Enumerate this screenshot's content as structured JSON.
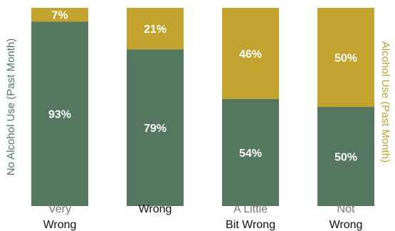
{
  "chart_data": {
    "type": "bar",
    "stacked": true,
    "categories": [
      {
        "line1": "Very",
        "line2": "Wrong"
      },
      {
        "line1": "",
        "line2": "Wrong"
      },
      {
        "line1": "A Little",
        "line2": "Bit Wrong"
      },
      {
        "line1": "Not",
        "line2": "Wrong"
      }
    ],
    "series": [
      {
        "name": "No Alcohol Use (Past Month)",
        "color": "#55775f",
        "values": [
          93,
          79,
          54,
          50
        ],
        "labels": [
          "93%",
          "79%",
          "54%",
          "50%"
        ]
      },
      {
        "name": "Alcohol Use (Past Month)",
        "color": "#c2a32f",
        "values": [
          7,
          21,
          46,
          50
        ],
        "labels": [
          "7%",
          "21%",
          "46%",
          "50%"
        ]
      }
    ],
    "ylabel_left": "No Alcohol Use (Past Month)",
    "ylabel_right": "Alcohol Use (Past Month)",
    "ylim": [
      0,
      100
    ],
    "grid": false,
    "colors": {
      "line1": "#777777",
      "line2": "#111111",
      "left_axis": "#55775f",
      "right_axis": "#c2a32f"
    }
  }
}
